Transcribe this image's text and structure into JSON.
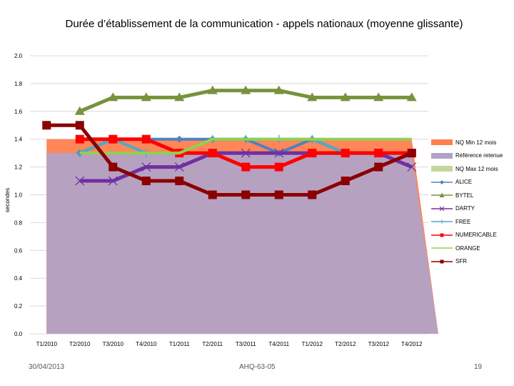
{
  "chart_data": {
    "type": "line",
    "title": "Durée d’établissement de la communication - appels nationaux (moyenne glissante)",
    "ylabel": "secondes",
    "xlabel": "",
    "ylim": [
      0,
      2.0
    ],
    "yticks": [
      "0.0",
      "0.2",
      "0.4",
      "0.6",
      "0.8",
      "1.0",
      "1.2",
      "1.4",
      "1.6",
      "1.8",
      "2.0"
    ],
    "categories": [
      "T1/2010",
      "T2/2010",
      "T3/2010",
      "T4/2010",
      "T1/2011",
      "T2/2011",
      "T3/2011",
      "T4/2011",
      "T1/2012",
      "T2/2012",
      "T3/2012",
      "T4/2012"
    ],
    "grid": true,
    "legend_position": "right",
    "series": [
      {
        "name": "NQ Min 12 mois",
        "kind": "area",
        "color": "#ff7f50",
        "values": [
          1.4,
          1.4,
          1.4,
          1.4,
          1.4,
          1.4,
          1.4,
          1.4,
          1.4,
          1.4,
          1.4,
          1.4
        ]
      },
      {
        "name": "Référence retenue",
        "kind": "area",
        "color": "#b3a2c7",
        "values": [
          1.3,
          1.3,
          1.3,
          1.3,
          1.3,
          1.3,
          1.3,
          1.3,
          1.3,
          1.3,
          1.3,
          1.3
        ]
      },
      {
        "name": "NQ Max 12 mois",
        "kind": "area",
        "color": "#c3d69b",
        "values": [
          1.3,
          1.3,
          1.3,
          1.3,
          1.3,
          1.3,
          1.3,
          1.3,
          1.3,
          1.3,
          1.3,
          1.3
        ]
      },
      {
        "name": "ALICE",
        "kind": "line",
        "marker": "diamond",
        "color": "#4f81bd",
        "values": [
          null,
          1.3,
          1.4,
          1.4,
          1.4,
          1.4,
          1.4,
          1.3,
          1.4,
          1.3,
          1.3,
          null
        ]
      },
      {
        "name": "BYTEL",
        "kind": "line",
        "marker": "triangle",
        "color": "#77933c",
        "values": [
          null,
          1.6,
          1.7,
          1.7,
          1.7,
          1.75,
          1.75,
          1.75,
          1.7,
          1.7,
          1.7,
          1.7
        ]
      },
      {
        "name": "DARTY",
        "kind": "line",
        "marker": "x",
        "color": "#7030a0",
        "values": [
          null,
          1.1,
          1.1,
          1.2,
          1.2,
          1.3,
          1.3,
          1.3,
          1.3,
          1.3,
          1.3,
          1.2
        ]
      },
      {
        "name": "FREE",
        "kind": "line",
        "marker": "plus",
        "color": "#4bacc6",
        "values": [
          null,
          1.3,
          1.4,
          1.3,
          1.3,
          1.4,
          1.4,
          1.4,
          1.4,
          1.3,
          1.3,
          null
        ]
      },
      {
        "name": "NUMERICABLE",
        "kind": "line",
        "marker": "square",
        "color": "#ff0000",
        "values": [
          null,
          1.4,
          1.4,
          1.4,
          1.3,
          1.3,
          1.2,
          1.2,
          1.3,
          1.3,
          1.3,
          1.3
        ]
      },
      {
        "name": "ORANGE",
        "kind": "line",
        "marker": "none",
        "color": "#92d050",
        "values": [
          null,
          1.3,
          1.3,
          1.3,
          1.3,
          1.4,
          1.4,
          1.4,
          1.4,
          1.4,
          1.4,
          1.4
        ]
      },
      {
        "name": "SFR",
        "kind": "line",
        "marker": "square",
        "color": "#8b0000",
        "values": [
          1.5,
          1.5,
          1.2,
          1.1,
          1.1,
          1.0,
          1.0,
          1.0,
          1.0,
          1.1,
          1.2,
          1.3
        ]
      }
    ]
  },
  "footer": {
    "date": "30/04/2013",
    "ref": "AHQ-63-05",
    "page": "19"
  }
}
